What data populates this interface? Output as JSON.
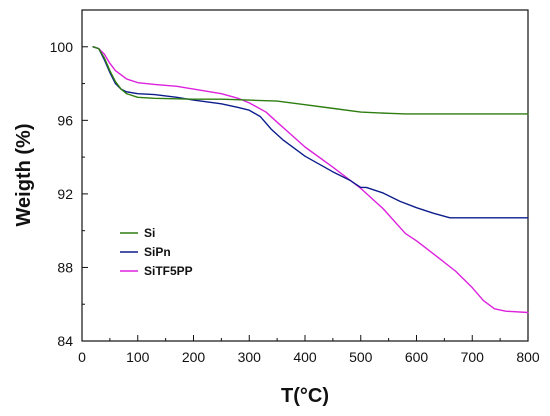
{
  "chart_data": {
    "type": "line",
    "title": "",
    "xlabel": "T(°C)",
    "ylabel": "Weigth (%)",
    "xlim": [
      0,
      800
    ],
    "ylim": [
      84,
      102
    ],
    "xticks": [
      0,
      100,
      200,
      300,
      400,
      500,
      600,
      700,
      800
    ],
    "yticks": [
      84,
      88,
      92,
      96,
      100
    ],
    "x_tick_labels": [
      "0",
      "100",
      "200",
      "300",
      "400",
      "500",
      "600",
      "700",
      "800"
    ],
    "y_tick_labels": [
      "84",
      "88",
      "92",
      "96",
      "100"
    ],
    "grid": false,
    "legend_position": "lower-left",
    "series": [
      {
        "name": "Si",
        "color": "#2e7d10",
        "points": [
          [
            20,
            100.0
          ],
          [
            30,
            99.9
          ],
          [
            40,
            99.4
          ],
          [
            50,
            98.7
          ],
          [
            60,
            98.1
          ],
          [
            70,
            97.7
          ],
          [
            80,
            97.45
          ],
          [
            100,
            97.25
          ],
          [
            130,
            97.2
          ],
          [
            200,
            97.15
          ],
          [
            250,
            97.15
          ],
          [
            300,
            97.1
          ],
          [
            350,
            97.05
          ],
          [
            400,
            96.85
          ],
          [
            450,
            96.65
          ],
          [
            500,
            96.45
          ],
          [
            550,
            96.38
          ],
          [
            580,
            96.35
          ],
          [
            650,
            96.35
          ],
          [
            700,
            96.35
          ],
          [
            800,
            96.35
          ]
        ]
      },
      {
        "name": "SiPn",
        "color": "#0d1e8c",
        "points": [
          [
            20,
            100.0
          ],
          [
            30,
            99.9
          ],
          [
            40,
            99.3
          ],
          [
            50,
            98.6
          ],
          [
            60,
            98.0
          ],
          [
            70,
            97.7
          ],
          [
            80,
            97.55
          ],
          [
            100,
            97.45
          ],
          [
            130,
            97.4
          ],
          [
            170,
            97.25
          ],
          [
            200,
            97.1
          ],
          [
            250,
            96.9
          ],
          [
            280,
            96.7
          ],
          [
            300,
            96.55
          ],
          [
            320,
            96.2
          ],
          [
            340,
            95.5
          ],
          [
            360,
            94.95
          ],
          [
            400,
            94.05
          ],
          [
            450,
            93.2
          ],
          [
            480,
            92.75
          ],
          [
            500,
            92.35
          ],
          [
            510,
            92.35
          ],
          [
            540,
            92.05
          ],
          [
            570,
            91.6
          ],
          [
            600,
            91.25
          ],
          [
            630,
            90.95
          ],
          [
            660,
            90.7
          ],
          [
            700,
            90.7
          ],
          [
            750,
            90.7
          ],
          [
            800,
            90.7
          ]
        ]
      },
      {
        "name": "SiTF5PP",
        "color": "#dd22dd",
        "points": [
          [
            20,
            100.0
          ],
          [
            30,
            99.9
          ],
          [
            40,
            99.6
          ],
          [
            50,
            99.1
          ],
          [
            60,
            98.7
          ],
          [
            80,
            98.25
          ],
          [
            100,
            98.05
          ],
          [
            130,
            97.95
          ],
          [
            170,
            97.85
          ],
          [
            200,
            97.7
          ],
          [
            250,
            97.45
          ],
          [
            280,
            97.2
          ],
          [
            300,
            96.95
          ],
          [
            330,
            96.45
          ],
          [
            350,
            95.9
          ],
          [
            400,
            94.55
          ],
          [
            450,
            93.45
          ],
          [
            500,
            92.3
          ],
          [
            540,
            91.2
          ],
          [
            580,
            89.85
          ],
          [
            600,
            89.45
          ],
          [
            630,
            88.75
          ],
          [
            670,
            87.8
          ],
          [
            700,
            86.9
          ],
          [
            720,
            86.2
          ],
          [
            740,
            85.75
          ],
          [
            760,
            85.62
          ],
          [
            800,
            85.55
          ]
        ]
      }
    ]
  }
}
